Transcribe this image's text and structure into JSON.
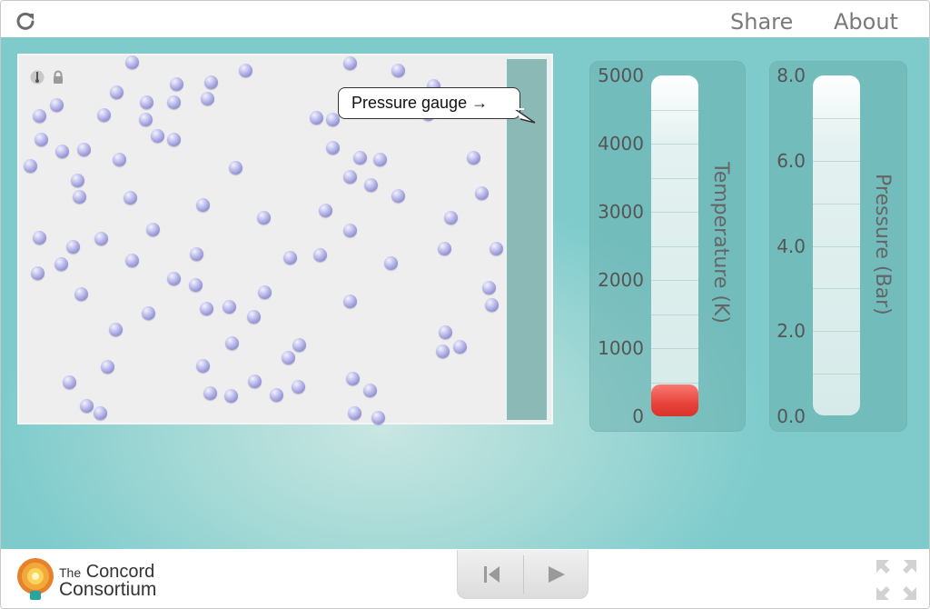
{
  "topbar": {
    "reload_icon": "reload-icon",
    "share_label": "Share",
    "about_label": "About"
  },
  "simulation": {
    "callout_text": "Pressure gauge →",
    "thermometer_icon": "thermometer-icon",
    "lock_icon": "lock-icon",
    "molecule_color": "#9a9ad6"
  },
  "temperature_slider": {
    "axis_label": "Temperature (K)",
    "ticks": [
      "5000",
      "4000",
      "3000",
      "2000",
      "1000",
      "0"
    ],
    "value_fraction": 0.05,
    "thumb_color": "#e8433a"
  },
  "pressure_gauge": {
    "axis_label": "Pressure (Bar)",
    "ticks": [
      "8.0",
      "6.0",
      "4.0",
      "2.0",
      "0.0"
    ],
    "value_fraction": 0.0
  },
  "footer": {
    "logo_line1_small": "The",
    "logo_line1": "Concord",
    "logo_line2": "Consortium",
    "reset_icon": "step-back-icon",
    "play_icon": "play-icon",
    "fullscreen_icon": "fullscreen-icon"
  },
  "colors": {
    "background_teal": "#7fcbcc",
    "panel": "#8bbab6"
  }
}
